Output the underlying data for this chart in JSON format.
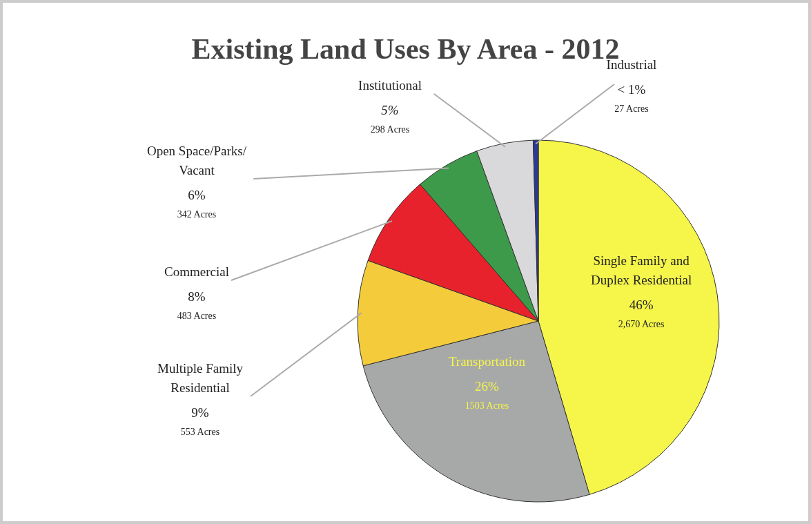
{
  "chart_data": {
    "type": "pie",
    "title": "Existing Land Uses By Area - 2012",
    "categories": [
      "Single Family and\nDuplex Residential",
      "Transportation",
      "Multiple Family\nResidential",
      "Commercial",
      "Open Space/Parks/\nVacant",
      "Institutional",
      "Industrial"
    ],
    "values": [
      2670,
      1503,
      553,
      483,
      342,
      298,
      27
    ],
    "colors": [
      "#f5f54a",
      "#a7a9a9",
      "#f4cb3a",
      "#e8222c",
      "#3d9a4a",
      "#d9d9db",
      "#2b3a96"
    ],
    "value_labels": [
      "46%\n2,670 Acres",
      "26%\n1503 Acres",
      "9%\n553 Acres",
      "8%\n483 Acres",
      "6%\n342 Acres",
      "5%\n298 Acres",
      "< 1%\n27 Acres"
    ]
  }
}
